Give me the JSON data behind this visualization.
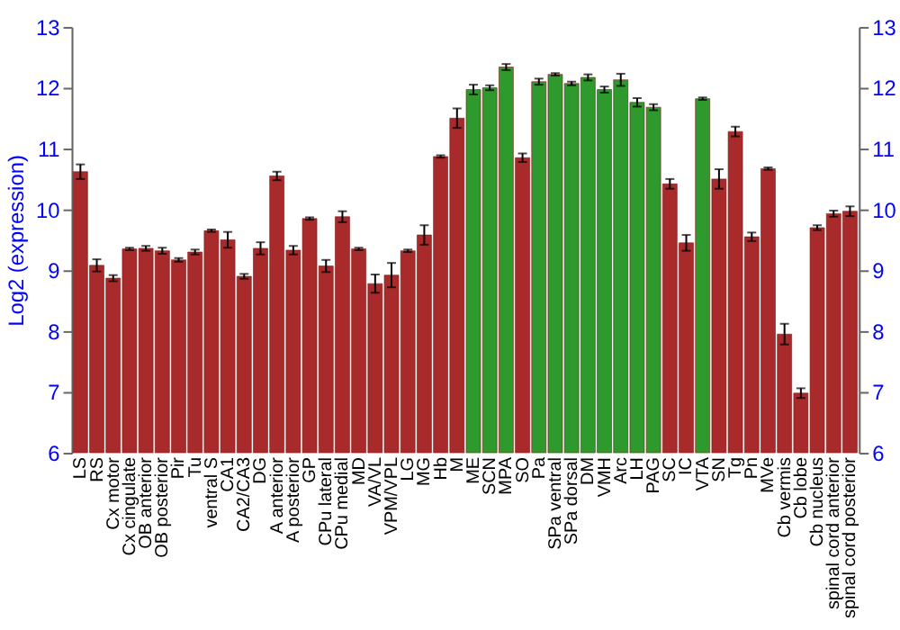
{
  "chart_data": {
    "type": "bar",
    "ylabel": "Log2 (expression)",
    "categories": [
      "LS",
      "RS",
      "Cx motor",
      "Cx cingulate",
      "OB anterior",
      "OB posterior",
      "Pir",
      "Tu",
      "ventral S",
      "CA1",
      "CA2/CA3",
      "DG",
      "A anterior",
      "A posterior",
      "GP",
      "CPu lateral",
      "CPu medial",
      "MD",
      "VA/VL",
      "VPM/VPL",
      "LG",
      "MG",
      "Hb",
      "M",
      "ME",
      "SCN",
      "MPA",
      "SO",
      "Pa",
      "SPa ventral",
      "SPa dorsal",
      "DM",
      "VMH",
      "Arc",
      "LH",
      "PAG",
      "SC",
      "IC",
      "VTA",
      "SN",
      "Tg",
      "Pn",
      "MVe",
      "Cb vermis",
      "Cb lobe",
      "Cb nucleus",
      "spinal cord anterior",
      "spinal cord posterior"
    ],
    "values": [
      10.62,
      9.08,
      8.87,
      9.35,
      9.36,
      9.32,
      9.17,
      9.3,
      9.65,
      9.5,
      8.9,
      9.36,
      10.55,
      9.33,
      9.85,
      9.07,
      9.88,
      9.35,
      8.78,
      8.92,
      9.32,
      9.58,
      10.87,
      11.5,
      11.97,
      12.0,
      12.34,
      10.85,
      12.1,
      12.22,
      12.07,
      12.17,
      11.97,
      12.13,
      11.76,
      11.68,
      10.42,
      9.45,
      11.82,
      10.5,
      11.28,
      9.55,
      10.67,
      7.95,
      6.98,
      9.7,
      9.93,
      9.97
    ],
    "errors": [
      0.12,
      0.1,
      0.05,
      0.02,
      0.04,
      0.05,
      0.03,
      0.04,
      0.02,
      0.13,
      0.04,
      0.1,
      0.07,
      0.07,
      0.02,
      0.1,
      0.09,
      0.02,
      0.15,
      0.2,
      0.02,
      0.16,
      0.02,
      0.16,
      0.08,
      0.04,
      0.05,
      0.07,
      0.05,
      0.02,
      0.03,
      0.05,
      0.05,
      0.1,
      0.07,
      0.05,
      0.08,
      0.13,
      0.02,
      0.16,
      0.08,
      0.07,
      0.02,
      0.17,
      0.08,
      0.04,
      0.05,
      0.08
    ],
    "colors": [
      "#a92a2a",
      "#a92a2a",
      "#a92a2a",
      "#a92a2a",
      "#a92a2a",
      "#a92a2a",
      "#a92a2a",
      "#a92a2a",
      "#a92a2a",
      "#a92a2a",
      "#a92a2a",
      "#a92a2a",
      "#a92a2a",
      "#a92a2a",
      "#a92a2a",
      "#a92a2a",
      "#a92a2a",
      "#a92a2a",
      "#a92a2a",
      "#a92a2a",
      "#a92a2a",
      "#a92a2a",
      "#a92a2a",
      "#a92a2a",
      "#2e9a2e",
      "#2e9a2e",
      "#2e9a2e",
      "#a92a2a",
      "#2e9a2e",
      "#2e9a2e",
      "#2e9a2e",
      "#2e9a2e",
      "#2e9a2e",
      "#2e9a2e",
      "#2e9a2e",
      "#2e9a2e",
      "#a92a2a",
      "#a92a2a",
      "#2e9a2e",
      "#a92a2a",
      "#a92a2a",
      "#a92a2a",
      "#a92a2a",
      "#a92a2a",
      "#a92a2a",
      "#a92a2a",
      "#a92a2a",
      "#a92a2a"
    ],
    "ylim": [
      6,
      13
    ],
    "yticks": [
      6,
      7,
      8,
      9,
      10,
      11,
      12,
      13
    ],
    "y2lim": [
      6,
      13
    ],
    "y2ticks": [
      6,
      7,
      8,
      9,
      10,
      11,
      12,
      13
    ],
    "grid": "y"
  }
}
